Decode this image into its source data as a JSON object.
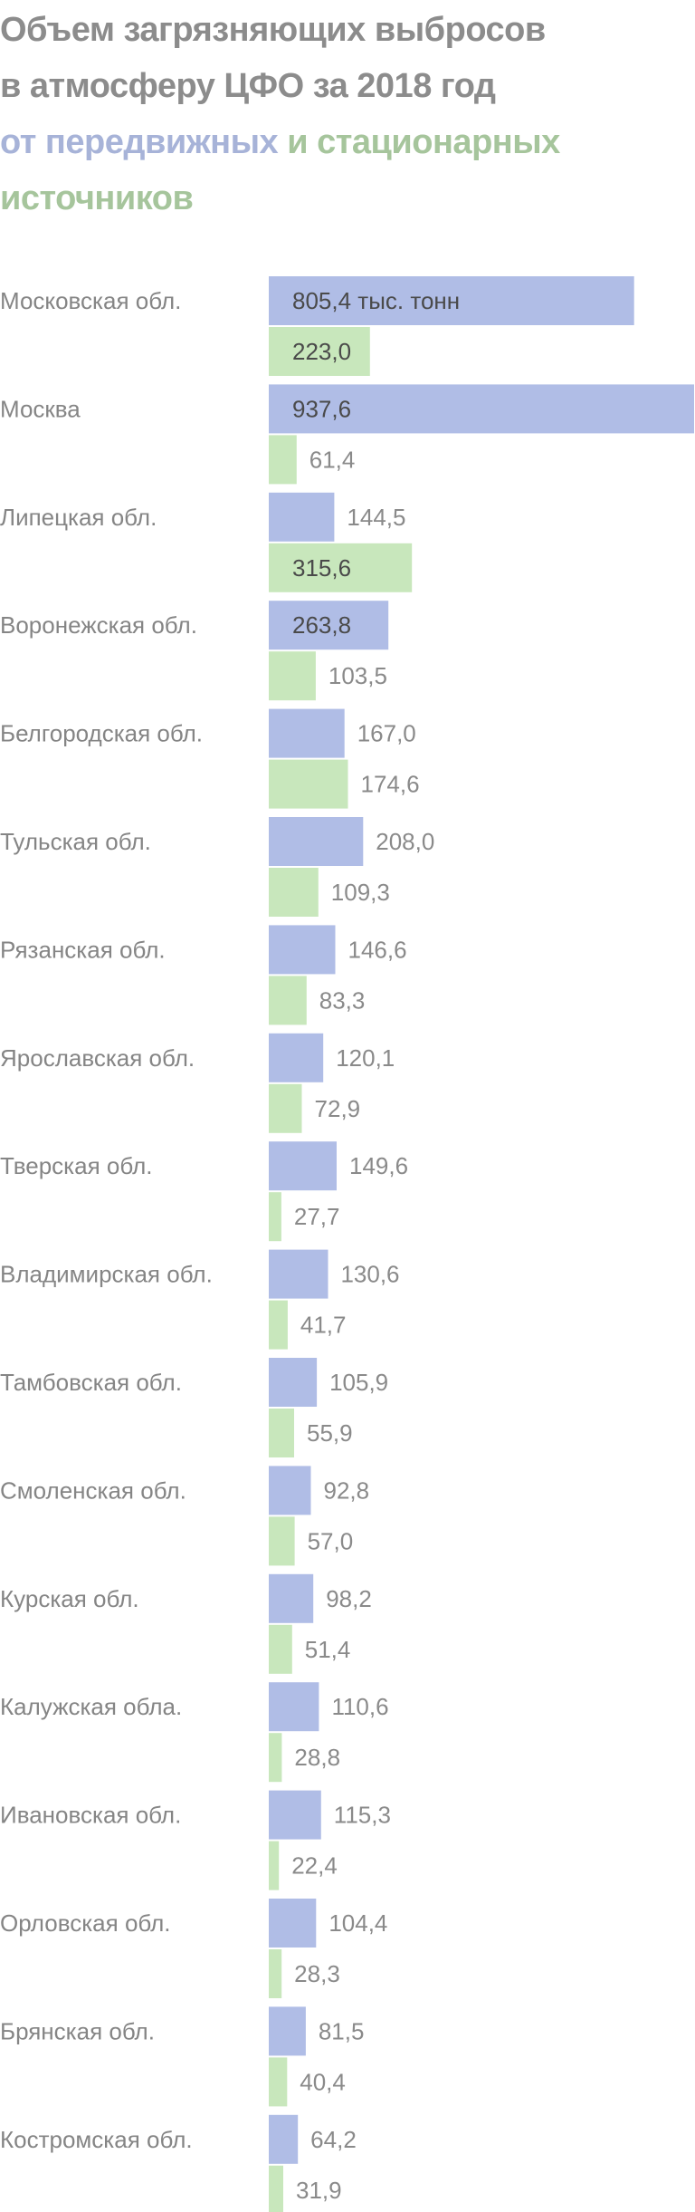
{
  "title": {
    "line1": "Объем загрязняющих выбросов",
    "line2": "в атмосферу ЦФО за 2018 год",
    "mobile_part": "от передвижных",
    "joiner": " и ",
    "stationary_part_line3": "стационарных",
    "stationary_part_line4": "источников"
  },
  "colors": {
    "mobile": "#b0bde6",
    "stationary": "#c8e7bc",
    "title": "#8c8c8c",
    "title_mobile": "#a7b3d8",
    "title_stationary": "#a6c59c",
    "label": "#858585"
  },
  "chart_data": {
    "type": "bar",
    "orientation": "horizontal",
    "unit_note": "тыс. тонн",
    "first_value_suffix": " тыс. тонн",
    "categories": [
      "Московская обл.",
      "Москва",
      "Липецкая обл.",
      "Воронежская обл.",
      "Белгородская обл.",
      "Тульская обл.",
      "Рязанская обл.",
      "Ярославская обл.",
      "Тверская обл.",
      "Владимирская обл.",
      "Тамбовская обл.",
      "Смоленская обл.",
      "Курская обл.",
      "Калужская обла.",
      "Ивановская обл.",
      "Орловская обл.",
      "Брянская обл.",
      "Костромская обл."
    ],
    "series": [
      {
        "name": "от передвижных",
        "values": [
          805.4,
          937.6,
          144.5,
          263.8,
          167.0,
          208.0,
          146.6,
          120.1,
          149.6,
          130.6,
          105.9,
          92.8,
          98.2,
          110.6,
          115.3,
          104.4,
          81.5,
          64.2
        ],
        "labels": [
          "805,4",
          "937,6",
          "144,5",
          "263,8",
          "167,0",
          "208,0",
          "146,6",
          "120,1",
          "149,6",
          "130,6",
          "105,9",
          "92,8",
          "98,2",
          "110,6",
          "115,3",
          "104,4",
          "81,5",
          "64,2"
        ]
      },
      {
        "name": "стационарных",
        "values": [
          223.0,
          61.4,
          315.6,
          103.5,
          174.6,
          109.3,
          83.3,
          72.9,
          27.7,
          41.7,
          55.9,
          57.0,
          51.4,
          28.8,
          22.4,
          28.3,
          40.4,
          31.9
        ],
        "labels": [
          "223,0",
          "61,4",
          "315,6",
          "103,5",
          "174,6",
          "109,3",
          "83,3",
          "72,9",
          "27,7",
          "41,7",
          "55,9",
          "57,0",
          "51,4",
          "28,8",
          "22,4",
          "28,3",
          "40,4",
          "31,9"
        ]
      }
    ],
    "xlim": [
      0,
      937.6
    ],
    "grid": false,
    "legend": "none"
  }
}
